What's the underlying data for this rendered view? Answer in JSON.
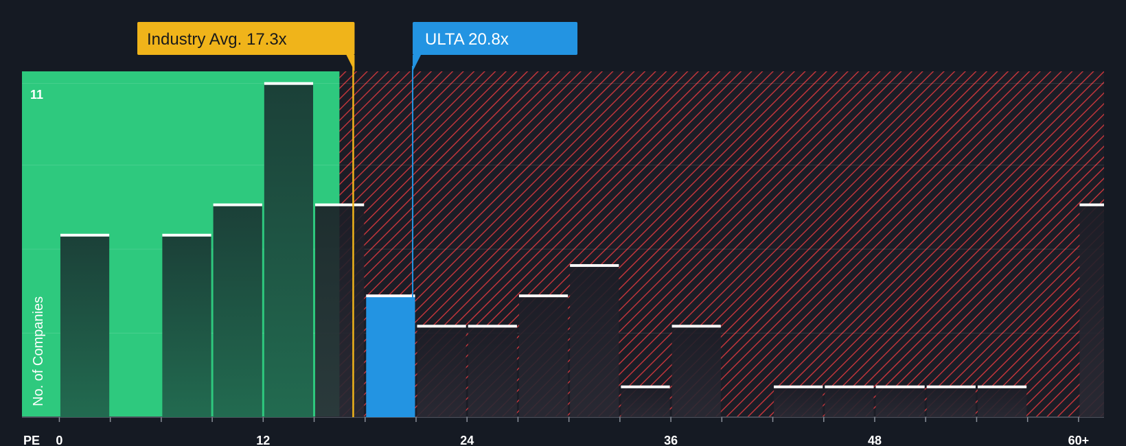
{
  "chart_data": {
    "type": "bar",
    "title": "",
    "xlabel": "PE",
    "ylabel": "No. of Companies",
    "x_tick_labels": [
      "0",
      "12",
      "24",
      "36",
      "48",
      "60+"
    ],
    "x_tick_values": [
      0,
      12,
      24,
      36,
      48,
      60
    ],
    "xlim": [
      -2.2,
      61.5
    ],
    "ylim": [
      0,
      11.4
    ],
    "y_max_label": "11",
    "bin_width": 3,
    "bars": [
      {
        "x": 0,
        "value": 6,
        "highlight": false
      },
      {
        "x": 6,
        "value": 6,
        "highlight": false
      },
      {
        "x": 9,
        "value": 7,
        "highlight": false
      },
      {
        "x": 12,
        "value": 11,
        "highlight": false
      },
      {
        "x": 15,
        "value": 7,
        "highlight": false
      },
      {
        "x": 18,
        "value": 4,
        "highlight": true
      },
      {
        "x": 21,
        "value": 3,
        "highlight": false
      },
      {
        "x": 24,
        "value": 3,
        "highlight": false
      },
      {
        "x": 27,
        "value": 4,
        "highlight": false
      },
      {
        "x": 30,
        "value": 5,
        "highlight": false
      },
      {
        "x": 33,
        "value": 1,
        "highlight": false
      },
      {
        "x": 36,
        "value": 3,
        "highlight": false
      },
      {
        "x": 42,
        "value": 1,
        "highlight": false
      },
      {
        "x": 45,
        "value": 1,
        "highlight": false
      },
      {
        "x": 48,
        "value": 1,
        "highlight": false
      },
      {
        "x": 51,
        "value": 1,
        "highlight": false
      },
      {
        "x": 54,
        "value": 1,
        "highlight": false
      },
      {
        "x": 60,
        "value": 7,
        "highlight": false
      }
    ],
    "industry_avg": {
      "label": "Industry Avg. 17.3x",
      "value": 17.3
    },
    "company": {
      "label": "ULTA 20.8x",
      "value": 20.8
    },
    "grid": true,
    "colors": {
      "background": "#151a23",
      "green_zone": "#2ec97e",
      "bar_in_green": "#1d4a3c",
      "bar_in_red": "#1b1d26",
      "red_hatch": "#c0353b",
      "highlight_bar": "#2394e2",
      "industry_callout": "#f0b41a",
      "company_callout": "#2394e2",
      "bar_cap": "#ffffff"
    }
  }
}
